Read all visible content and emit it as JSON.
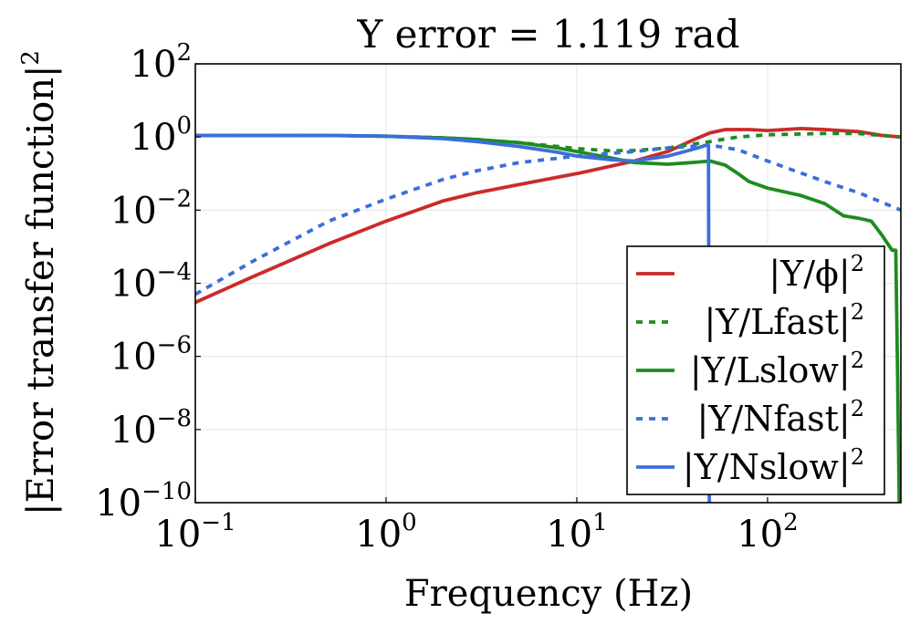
{
  "chart_data": {
    "type": "line",
    "title": "Y error = 1.119 rad",
    "xlabel": "Frequency (Hz)",
    "ylabel": "|Error transfer function|",
    "ylabel_exponent": "2",
    "xscale": "log",
    "yscale": "log",
    "xlim": [
      0.1,
      500
    ],
    "ylim": [
      1e-10,
      100
    ],
    "grid": true,
    "legend_position": "bottom-right",
    "x_ticks": [
      {
        "base": "10",
        "exp": "−1",
        "value": 0.1
      },
      {
        "base": "10",
        "exp": "0",
        "value": 1
      },
      {
        "base": "10",
        "exp": "1",
        "value": 10
      },
      {
        "base": "10",
        "exp": "2",
        "value": 100
      }
    ],
    "y_ticks": [
      {
        "base": "10",
        "exp": "2",
        "value": 100
      },
      {
        "base": "10",
        "exp": "0",
        "value": 1
      },
      {
        "base": "10",
        "exp": "−2",
        "value": 0.01
      },
      {
        "base": "10",
        "exp": "−4",
        "value": 0.0001
      },
      {
        "base": "10",
        "exp": "−6",
        "value": 1e-06
      },
      {
        "base": "10",
        "exp": "−8",
        "value": 1e-08
      },
      {
        "base": "10",
        "exp": "−10",
        "value": 1e-10
      }
    ],
    "series": [
      {
        "name": "|Y/ϕ|",
        "exp": "2",
        "color": "#cc2a2a",
        "dash": "solid",
        "x": [
          0.1,
          0.2,
          0.5,
          1,
          2,
          3,
          5,
          10,
          20,
          30,
          40,
          50,
          60,
          80,
          100,
          150,
          200,
          300,
          400,
          500
        ],
        "y": [
          3e-05,
          0.00015,
          0.0012,
          0.005,
          0.018,
          0.03,
          0.05,
          0.1,
          0.22,
          0.4,
          0.8,
          1.3,
          1.6,
          1.6,
          1.5,
          1.7,
          1.6,
          1.4,
          1.1,
          1.0
        ]
      },
      {
        "name": "|Y/Lfast|",
        "exp": "2",
        "color": "#1e8c1e",
        "dash": "dotted",
        "x": [
          0.1,
          0.5,
          1,
          2,
          3,
          5,
          8,
          10,
          15,
          20,
          30,
          50,
          70,
          100,
          200,
          300,
          500
        ],
        "y": [
          1.1,
          1.1,
          1.05,
          0.95,
          0.85,
          0.7,
          0.55,
          0.48,
          0.42,
          0.43,
          0.5,
          0.75,
          1.0,
          1.15,
          1.25,
          1.25,
          1.0
        ]
      },
      {
        "name": "|Y/Lslow|",
        "exp": "2",
        "color": "#1e8c1e",
        "dash": "solid",
        "x": [
          0.1,
          0.5,
          1,
          2,
          3,
          5,
          8,
          10,
          15,
          20,
          30,
          40,
          50,
          60,
          70,
          80,
          100,
          150,
          200,
          250,
          300,
          350,
          400,
          450,
          470,
          480,
          490,
          500
        ],
        "y": [
          1.1,
          1.1,
          1.05,
          0.95,
          0.85,
          0.7,
          0.5,
          0.4,
          0.27,
          0.2,
          0.18,
          0.2,
          0.22,
          0.17,
          0.1,
          0.06,
          0.04,
          0.025,
          0.015,
          0.007,
          0.006,
          0.005,
          0.002,
          0.0008,
          0.0008,
          5e-07,
          1e-10,
          1e-10
        ]
      },
      {
        "name": "|Y/Nfast|",
        "exp": "2",
        "color": "#3b6fd9",
        "dash": "dotted",
        "x": [
          0.1,
          0.2,
          0.5,
          1,
          2,
          3,
          5,
          10,
          20,
          30,
          50,
          70,
          100,
          200,
          300,
          500
        ],
        "y": [
          5e-05,
          0.0004,
          0.005,
          0.02,
          0.07,
          0.12,
          0.2,
          0.3,
          0.4,
          0.5,
          0.6,
          0.45,
          0.22,
          0.06,
          0.03,
          0.01
        ]
      },
      {
        "name": "|Y/Nslow|",
        "exp": "2",
        "color": "#3b6fd9",
        "dash": "solid",
        "x": [
          0.1,
          0.5,
          1,
          2,
          3,
          5,
          8,
          10,
          15,
          20,
          30,
          40,
          48,
          49,
          49.5,
          50
        ],
        "y": [
          1.1,
          1.1,
          1.05,
          0.9,
          0.75,
          0.55,
          0.38,
          0.3,
          0.24,
          0.22,
          0.3,
          0.45,
          0.6,
          0.6,
          1e-10,
          1e-10
        ]
      }
    ]
  }
}
